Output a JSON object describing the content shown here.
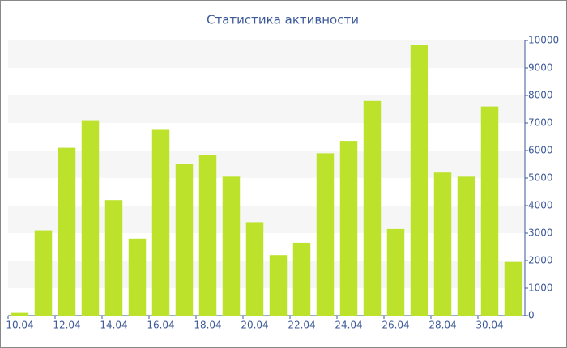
{
  "chart_data": {
    "type": "bar",
    "title": "Статистика активности",
    "categories": [
      "10.04",
      null,
      "12.04",
      null,
      "14.04",
      null,
      "16.04",
      null,
      "18.04",
      null,
      "20.04",
      null,
      "22.04",
      null,
      "24.04",
      null,
      "26.04",
      null,
      "28.04",
      null,
      "30.04",
      null
    ],
    "values": [
      100,
      3100,
      6100,
      7100,
      4200,
      2800,
      6750,
      5500,
      5850,
      5050,
      3400,
      2200,
      2650,
      5900,
      6350,
      7800,
      3150,
      9850,
      5200,
      5050,
      7600,
      1950
    ],
    "color": "#bde22c",
    "ylim": [
      0,
      10000
    ],
    "yticks": [
      0,
      1000,
      2000,
      3000,
      4000,
      5000,
      6000,
      7000,
      8000,
      9000,
      10000
    ],
    "grid": true
  }
}
